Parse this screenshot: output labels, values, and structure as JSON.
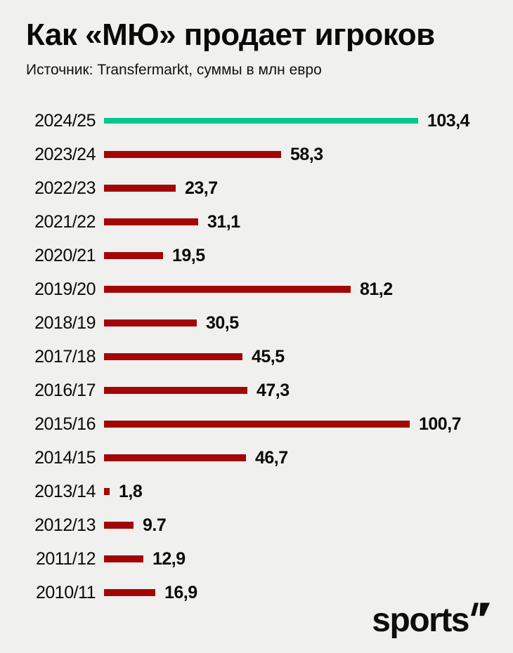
{
  "header": {
    "title": "Как «МЮ» продает игроков",
    "subtitle": "Источник: Transfermarkt, суммы в млн евро"
  },
  "footer": {
    "logo_text": "sports",
    "logo_mark": "arrow-up-right-icon"
  },
  "colors": {
    "background": "#f0f0ee",
    "bar_default": "#a30606",
    "bar_highlight": "#00c78e",
    "text": "#0a0a0a"
  },
  "chart_data": {
    "type": "bar",
    "orientation": "horizontal",
    "title": "Как «МЮ» продает игроков",
    "source": "Transfermarkt",
    "unit": "млн евро",
    "xlim": [
      0,
      103.4
    ],
    "grid": false,
    "legend": false,
    "highlight_index": 0,
    "categories": [
      "2024/25",
      "2023/24",
      "2022/23",
      "2021/22",
      "2020/21",
      "2019/20",
      "2018/19",
      "2017/18",
      "2016/17",
      "2015/16",
      "2014/15",
      "2013/14",
      "2012/13",
      "2011/12",
      "2010/11"
    ],
    "values": [
      103.4,
      58.3,
      23.7,
      31.1,
      19.5,
      81.2,
      30.5,
      45.5,
      47.3,
      100.7,
      46.7,
      1.8,
      9.7,
      12.9,
      16.9
    ],
    "value_labels": [
      "103,4",
      "58,3",
      "23,7",
      "31,1",
      "19,5",
      "81,2",
      "30,5",
      "45,5",
      "47,3",
      "100,7",
      "46,7",
      "1,8",
      "9.7",
      "12,9",
      "16,9"
    ]
  }
}
